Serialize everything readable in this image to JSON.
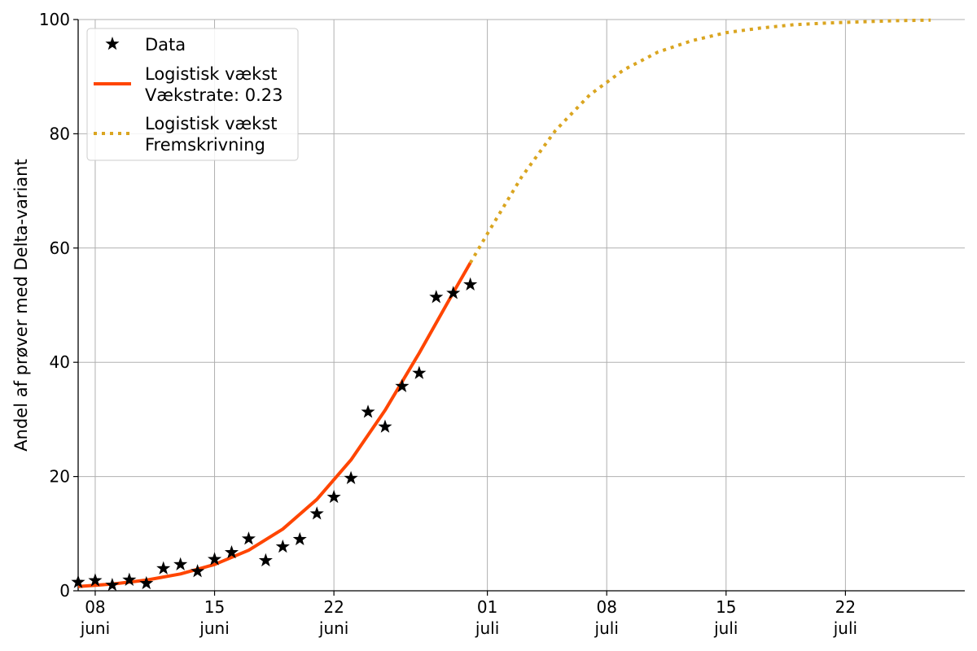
{
  "chart_data": {
    "type": "line",
    "ylabel": "Andel af prøver med Delta-variant",
    "xlabel": "",
    "ylim": [
      0,
      100
    ],
    "xlim": [
      "2021-06-07",
      "2021-07-29"
    ],
    "grid": true,
    "legend_position": "top-left",
    "y_ticks": [
      0,
      20,
      40,
      60,
      80,
      100
    ],
    "x_ticks": [
      {
        "date": "2021-06-08",
        "day": "08",
        "month": "juni"
      },
      {
        "date": "2021-06-15",
        "day": "15",
        "month": "juni"
      },
      {
        "date": "2021-06-22",
        "day": "22",
        "month": "juni"
      },
      {
        "date": "2021-07-01",
        "day": "01",
        "month": "juli"
      },
      {
        "date": "2021-07-08",
        "day": "08",
        "month": "juli"
      },
      {
        "date": "2021-07-15",
        "day": "15",
        "month": "juli"
      },
      {
        "date": "2021-07-22",
        "day": "22",
        "month": "juli"
      }
    ],
    "series": [
      {
        "name": "Data",
        "kind": "scatter",
        "marker": "star",
        "color": "#000000",
        "points": [
          {
            "x": "2021-06-07",
            "y": 1.5
          },
          {
            "x": "2021-06-08",
            "y": 1.8
          },
          {
            "x": "2021-06-09",
            "y": 1.0
          },
          {
            "x": "2021-06-10",
            "y": 1.9
          },
          {
            "x": "2021-06-11",
            "y": 1.3
          },
          {
            "x": "2021-06-12",
            "y": 3.9
          },
          {
            "x": "2021-06-13",
            "y": 4.6
          },
          {
            "x": "2021-06-14",
            "y": 3.4
          },
          {
            "x": "2021-06-15",
            "y": 5.5
          },
          {
            "x": "2021-06-16",
            "y": 6.7
          },
          {
            "x": "2021-06-17",
            "y": 9.1
          },
          {
            "x": "2021-06-18",
            "y": 5.3
          },
          {
            "x": "2021-06-19",
            "y": 7.7
          },
          {
            "x": "2021-06-20",
            "y": 9.0
          },
          {
            "x": "2021-06-21",
            "y": 13.5
          },
          {
            "x": "2021-06-22",
            "y": 16.4
          },
          {
            "x": "2021-06-23",
            "y": 19.7
          },
          {
            "x": "2021-06-24",
            "y": 31.3
          },
          {
            "x": "2021-06-25",
            "y": 28.7
          },
          {
            "x": "2021-06-26",
            "y": 35.8
          },
          {
            "x": "2021-06-27",
            "y": 38.1
          },
          {
            "x": "2021-06-28",
            "y": 51.4
          },
          {
            "x": "2021-06-29",
            "y": 52.1
          },
          {
            "x": "2021-06-30",
            "y": 53.6
          }
        ]
      },
      {
        "name": "Logistisk vækst\nVækstrate: 0.23",
        "kind": "line",
        "style": "solid",
        "color": "#ff4500",
        "points": [
          {
            "x": "2021-06-07",
            "y": 0.75
          },
          {
            "x": "2021-06-09",
            "y": 1.18
          },
          {
            "x": "2021-06-11",
            "y": 1.87
          },
          {
            "x": "2021-06-13",
            "y": 2.95
          },
          {
            "x": "2021-06-15",
            "y": 4.6
          },
          {
            "x": "2021-06-17",
            "y": 7.1
          },
          {
            "x": "2021-06-19",
            "y": 10.8
          },
          {
            "x": "2021-06-21",
            "y": 16.0
          },
          {
            "x": "2021-06-23",
            "y": 22.9
          },
          {
            "x": "2021-06-25",
            "y": 31.6
          },
          {
            "x": "2021-06-27",
            "y": 41.6
          },
          {
            "x": "2021-06-29",
            "y": 52.2
          },
          {
            "x": "2021-06-30",
            "y": 57.4
          }
        ]
      },
      {
        "name": "Logistisk vækst\nFremskrivning",
        "kind": "line",
        "style": "dotted",
        "color": "#daa520",
        "points": [
          {
            "x": "2021-06-30",
            "y": 57.4
          },
          {
            "x": "2021-07-01",
            "y": 62.5
          },
          {
            "x": "2021-07-03",
            "y": 72.4
          },
          {
            "x": "2021-07-05",
            "y": 80.6
          },
          {
            "x": "2021-07-07",
            "y": 86.8
          },
          {
            "x": "2021-07-09",
            "y": 91.2
          },
          {
            "x": "2021-07-11",
            "y": 94.3
          },
          {
            "x": "2021-07-13",
            "y": 96.3
          },
          {
            "x": "2021-07-15",
            "y": 97.7
          },
          {
            "x": "2021-07-17",
            "y": 98.5
          },
          {
            "x": "2021-07-19",
            "y": 99.1
          },
          {
            "x": "2021-07-21",
            "y": 99.4
          },
          {
            "x": "2021-07-23",
            "y": 99.6
          },
          {
            "x": "2021-07-25",
            "y": 99.8
          },
          {
            "x": "2021-07-27",
            "y": 99.9
          }
        ]
      }
    ]
  }
}
